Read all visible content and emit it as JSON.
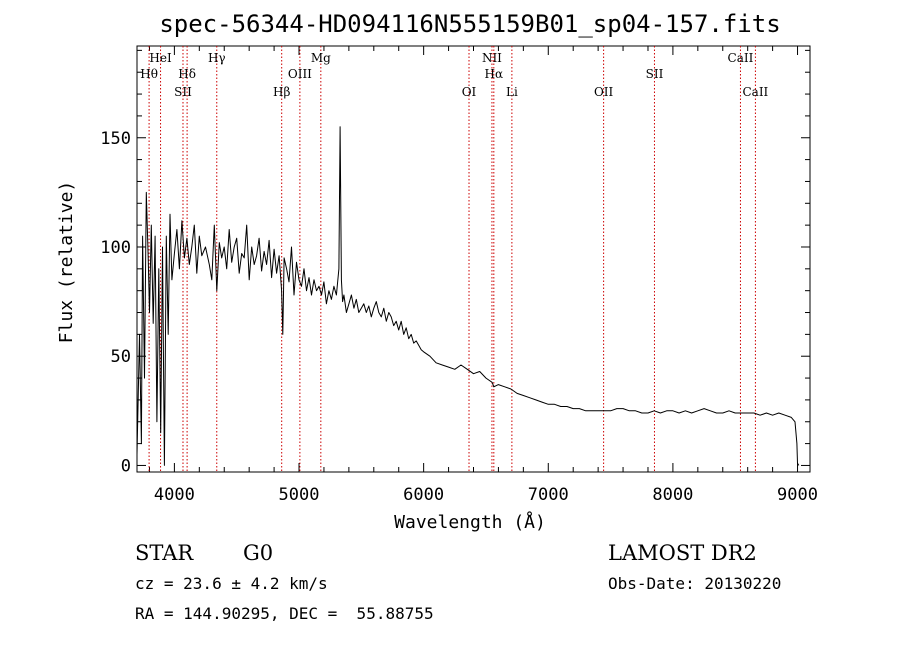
{
  "chart_data": {
    "type": "line",
    "title": "spec-56344-HD094116N555159B01_sp04-157.fits",
    "xlabel": "Wavelength (Å)",
    "ylabel": "Flux (relative)",
    "xlim": [
      3700,
      9100
    ],
    "ylim": [
      -3,
      192
    ],
    "xticks": [
      4000,
      5000,
      6000,
      7000,
      8000,
      9000
    ],
    "yticks": [
      0,
      50,
      100,
      150
    ],
    "grid": false,
    "line_color": "#000000",
    "marker_color": "#cc0000",
    "series": [
      {
        "x": [
          3700,
          3720,
          3735,
          3745,
          3760,
          3775,
          3790,
          3800,
          3815,
          3830,
          3845,
          3860,
          3875,
          3890,
          3905,
          3920,
          3935,
          3950,
          3965,
          3980,
          4000,
          4020,
          4040,
          4060,
          4080,
          4100,
          4120,
          4140,
          4160,
          4180,
          4200,
          4220,
          4250,
          4280,
          4300,
          4320,
          4340,
          4360,
          4380,
          4400,
          4420,
          4440,
          4460,
          4480,
          4500,
          4520,
          4540,
          4560,
          4580,
          4600,
          4620,
          4640,
          4660,
          4680,
          4700,
          4720,
          4740,
          4760,
          4780,
          4800,
          4820,
          4840,
          4860,
          4870,
          4880,
          4900,
          4920,
          4940,
          4960,
          4980,
          5000,
          5020,
          5040,
          5060,
          5080,
          5100,
          5120,
          5140,
          5160,
          5180,
          5200,
          5220,
          5240,
          5260,
          5280,
          5300,
          5320,
          5330,
          5340,
          5350,
          5360,
          5380,
          5400,
          5420,
          5440,
          5460,
          5480,
          5500,
          5520,
          5540,
          5560,
          5580,
          5600,
          5620,
          5640,
          5660,
          5680,
          5700,
          5720,
          5740,
          5760,
          5780,
          5800,
          5820,
          5840,
          5860,
          5880,
          5900,
          5920,
          5940,
          5960,
          5980,
          6000,
          6050,
          6100,
          6150,
          6200,
          6250,
          6300,
          6350,
          6400,
          6450,
          6500,
          6550,
          6563,
          6600,
          6650,
          6700,
          6750,
          6800,
          6850,
          6900,
          6950,
          7000,
          7050,
          7100,
          7150,
          7200,
          7250,
          7300,
          7350,
          7400,
          7450,
          7500,
          7550,
          7600,
          7650,
          7700,
          7750,
          7800,
          7850,
          7900,
          7950,
          8000,
          8050,
          8100,
          8150,
          8200,
          8250,
          8300,
          8350,
          8400,
          8450,
          8500,
          8550,
          8600,
          8650,
          8700,
          8750,
          8800,
          8850,
          8900,
          8950,
          8980,
          8995,
          9000,
          9010
        ],
        "y": [
          5,
          60,
          10,
          105,
          40,
          125,
          95,
          70,
          110,
          65,
          105,
          20,
          90,
          15,
          100,
          0,
          105,
          60,
          115,
          85,
          97,
          108,
          90,
          112,
          95,
          104,
          92,
          100,
          110,
          88,
          105,
          96,
          100,
          92,
          85,
          110,
          80,
          102,
          95,
          100,
          90,
          108,
          93,
          100,
          104,
          88,
          97,
          95,
          110,
          85,
          100,
          92,
          96,
          104,
          89,
          98,
          92,
          103,
          86,
          99,
          88,
          96,
          80,
          60,
          95,
          90,
          84,
          100,
          78,
          93,
          85,
          82,
          90,
          80,
          86,
          78,
          85,
          80,
          82,
          78,
          84,
          74,
          80,
          76,
          82,
          78,
          90,
          155,
          85,
          75,
          78,
          70,
          74,
          78,
          72,
          76,
          70,
          72,
          74,
          70,
          73,
          68,
          72,
          75,
          70,
          68,
          72,
          66,
          70,
          68,
          64,
          66,
          62,
          66,
          60,
          63,
          58,
          60,
          56,
          57,
          55,
          53,
          52,
          50,
          47,
          46,
          45,
          44,
          46,
          44,
          42,
          43,
          40,
          38,
          36,
          37,
          36,
          35,
          33,
          32,
          31,
          30,
          29,
          28,
          28,
          27,
          27,
          26,
          26,
          25,
          25,
          25,
          25,
          25,
          26,
          26,
          25,
          25,
          24,
          24,
          25,
          24,
          25,
          25,
          24,
          25,
          24,
          25,
          26,
          25,
          24,
          24,
          25,
          24,
          24,
          24,
          24,
          23,
          24,
          23,
          24,
          23,
          22,
          20,
          10,
          1,
          0
        ]
      }
    ],
    "line_markers": [
      {
        "label": "Hθ",
        "x": 3797,
        "row": 2
      },
      {
        "label": "HeI",
        "x": 3889,
        "row": 1
      },
      {
        "label": "SII",
        "x": 4069,
        "row": 3
      },
      {
        "label": "Hδ",
        "x": 4102,
        "row": 2
      },
      {
        "label": "Hγ",
        "x": 4340,
        "row": 1
      },
      {
        "label": "Hβ",
        "x": 4861,
        "row": 3
      },
      {
        "label": "OIII",
        "x": 5007,
        "row": 2
      },
      {
        "label": "Mg",
        "x": 5175,
        "row": 1
      },
      {
        "label": "OI",
        "x": 6364,
        "row": 3
      },
      {
        "label": "NII",
        "x": 6548,
        "row": 1
      },
      {
        "label": "Hα",
        "x": 6563,
        "row": 2
      },
      {
        "label": "Li",
        "x": 6708,
        "row": 3
      },
      {
        "label": "OII",
        "x": 7444,
        "row": 3
      },
      {
        "label": "SII",
        "x": 7852,
        "row": 2
      },
      {
        "label": "CaII",
        "x": 8542,
        "row": 1
      },
      {
        "label": "CaII",
        "x": 8662,
        "row": 3
      }
    ],
    "annotations": {
      "object_class": "STAR",
      "subclass": "G0",
      "survey": "LAMOST DR2",
      "redshift": "cz = 23.6 ± 4.2 km/s",
      "obs_date": "Obs-Date: 20130220",
      "coords": "RA = 144.90295, DEC =  55.88755"
    }
  }
}
